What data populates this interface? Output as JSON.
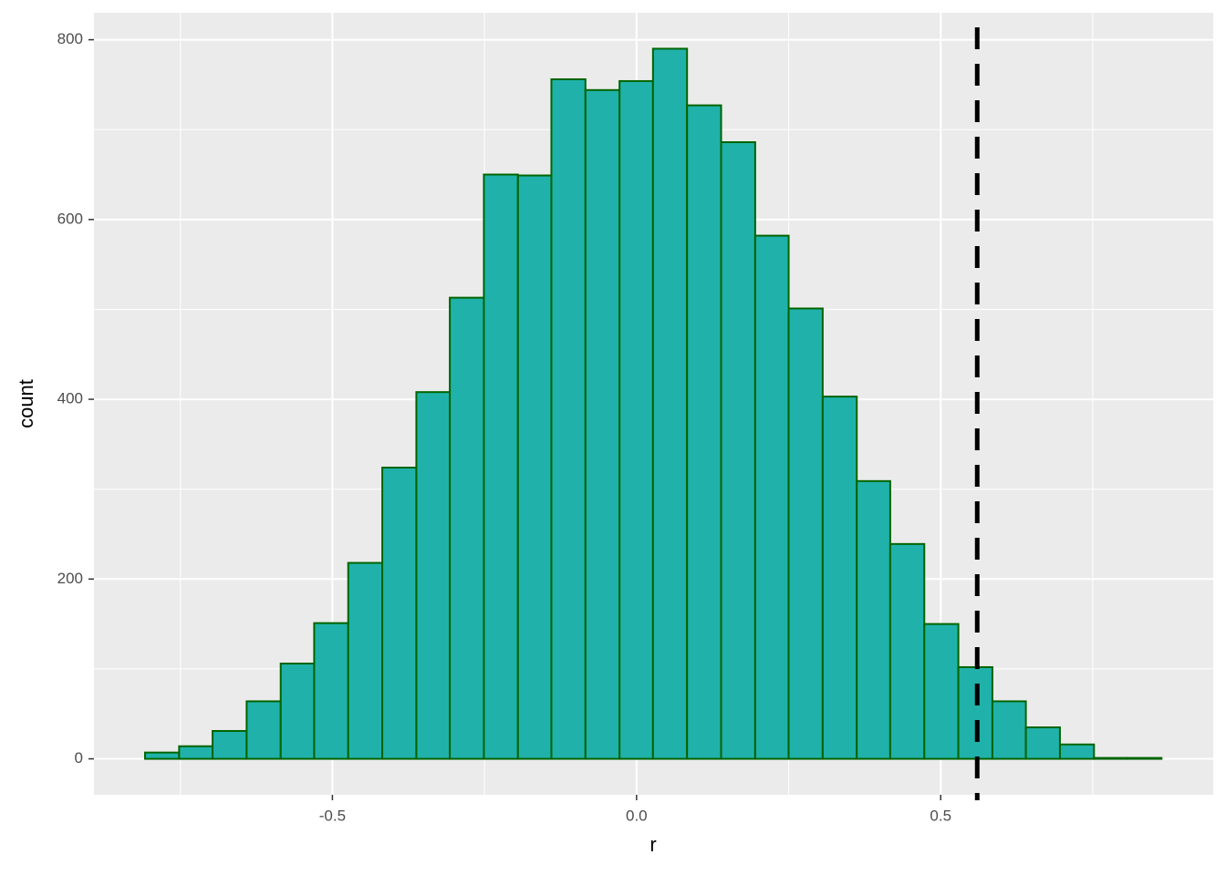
{
  "chart_data": {
    "type": "histogram",
    "x_label": "r",
    "y_label": "count",
    "bins": [
      -0.808,
      -0.752,
      -0.697,
      -0.641,
      -0.585,
      -0.53,
      -0.474,
      -0.418,
      -0.362,
      -0.307,
      -0.251,
      -0.195,
      -0.14,
      -0.084,
      -0.028,
      0.027,
      0.083,
      0.139,
      0.195,
      0.25,
      0.306,
      0.362,
      0.417,
      0.473,
      0.529,
      0.585,
      0.64,
      0.696,
      0.752,
      0.807,
      0.863
    ],
    "counts": [
      7,
      14,
      31,
      64,
      106,
      151,
      218,
      324,
      408,
      513,
      650,
      649,
      756,
      744,
      754,
      790,
      727,
      686,
      582,
      501,
      403,
      309,
      239,
      150,
      102,
      64,
      35,
      16,
      1,
      1
    ],
    "color": "#20b2aa",
    "edge_color": "#006400",
    "vline": {
      "x": 0.56,
      "color": "#000000",
      "style": "dashed"
    },
    "xlim": [
      -0.892,
      0.948
    ],
    "ylim": [
      -40,
      830
    ],
    "xticks": [
      -0.5,
      {
        "value": 0,
        "label": "0.0"
      },
      0.5
    ],
    "yticks": [
      0,
      200,
      400,
      600,
      800
    ],
    "x_minor_grid": [
      -0.75,
      -0.25,
      0.25,
      0.75
    ],
    "y_minor_grid": [
      100,
      300,
      500,
      700
    ],
    "grid": true,
    "panel_background": "#ebebeb"
  }
}
